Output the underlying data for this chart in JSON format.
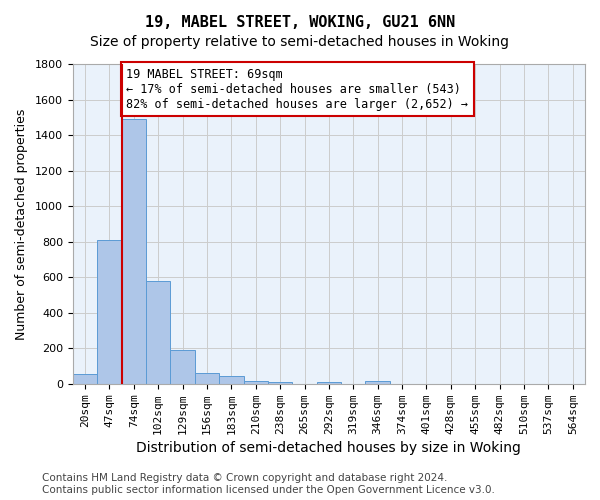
{
  "title": "19, MABEL STREET, WOKING, GU21 6NN",
  "subtitle": "Size of property relative to semi-detached houses in Woking",
  "xlabel": "Distribution of semi-detached houses by size in Woking",
  "ylabel": "Number of semi-detached properties",
  "footer_line1": "Contains HM Land Registry data © Crown copyright and database right 2024.",
  "footer_line2": "Contains public sector information licensed under the Open Government Licence v3.0.",
  "annotation_title": "19 MABEL STREET: 69sqm",
  "annotation_line1": "← 17% of semi-detached houses are smaller (543)",
  "annotation_line2": "82% of semi-detached houses are larger (2,652) →",
  "bin_labels": [
    "20sqm",
    "47sqm",
    "74sqm",
    "102sqm",
    "129sqm",
    "156sqm",
    "183sqm",
    "210sqm",
    "238sqm",
    "265sqm",
    "292sqm",
    "319sqm",
    "346sqm",
    "374sqm",
    "401sqm",
    "428sqm",
    "455sqm",
    "482sqm",
    "510sqm",
    "537sqm",
    "564sqm"
  ],
  "bar_values": [
    55,
    810,
    1490,
    580,
    192,
    62,
    42,
    18,
    12,
    0,
    12,
    0,
    18,
    0,
    0,
    0,
    0,
    0,
    0,
    0,
    0
  ],
  "bar_color": "#AEC6E8",
  "bar_edge_color": "#5B9BD5",
  "subject_bin_index": 2,
  "red_line_color": "#CC0000",
  "annotation_box_edge": "#CC0000",
  "ylim": [
    0,
    1800
  ],
  "yticks": [
    0,
    200,
    400,
    600,
    800,
    1000,
    1200,
    1400,
    1600,
    1800
  ],
  "grid_color": "#CCCCCC",
  "bg_color": "#EAF2FB",
  "fig_bg_color": "#FFFFFF",
  "title_fontsize": 11,
  "subtitle_fontsize": 10,
  "xlabel_fontsize": 10,
  "ylabel_fontsize": 9,
  "tick_fontsize": 8,
  "footer_fontsize": 7.5,
  "annotation_fontsize": 8.5
}
